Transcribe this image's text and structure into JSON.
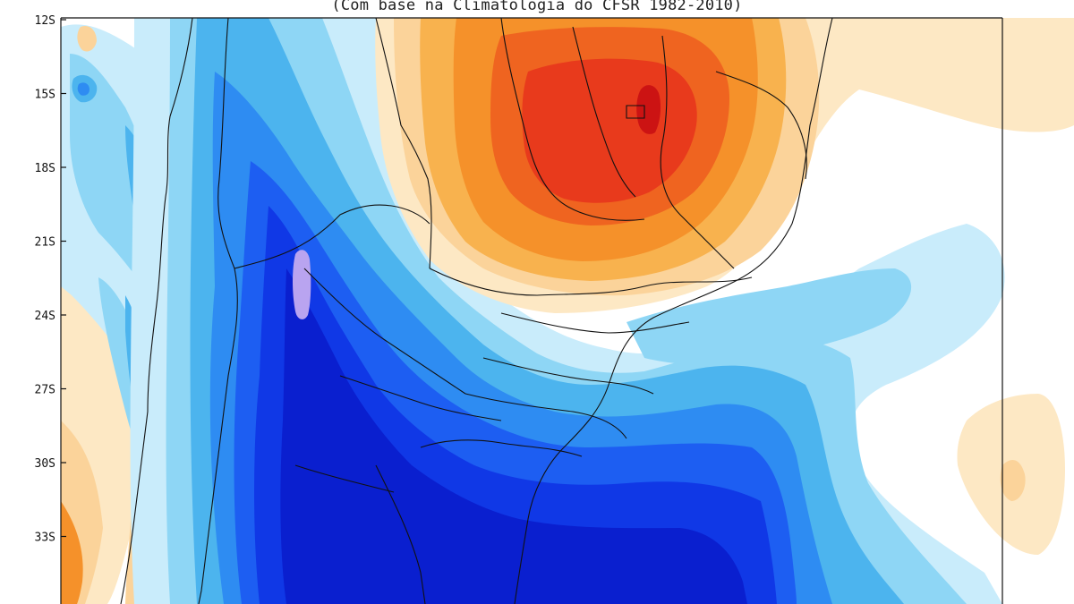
{
  "map": {
    "subtitle": "(Com base na Climatologia do CFSR 1982-2010)",
    "latitude_labels": [
      "12S",
      "15S",
      "18S",
      "21S",
      "24S",
      "27S",
      "30S",
      "33S"
    ],
    "colors": {
      "warm_1": "#fde8c4",
      "warm_2": "#fbd39a",
      "warm_3": "#f8b24e",
      "warm_4": "#f5912a",
      "warm_5": "#ef6420",
      "warm_6": "#e83a1c",
      "warm_7": "#cc1313",
      "cool_1": "#c9ecfb",
      "cool_2": "#8ed6f5",
      "cool_3": "#4cb4ee",
      "cool_4": "#2e8cf2",
      "cool_5": "#1d5ef2",
      "cool_6": "#1038e6",
      "cool_7": "#0a1fcf",
      "cool_peak": "#b9a4f0"
    }
  }
}
